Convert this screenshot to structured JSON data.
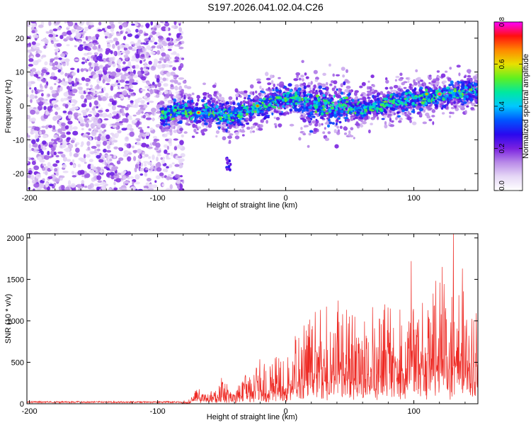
{
  "title": "S197.2026.041.02.04.C26",
  "colors": {
    "snr_line": "#ee2a24",
    "axis": "#000000",
    "background": "#ffffff",
    "colormap": [
      "#ffffff",
      "#e6d8f6",
      "#b98ae8",
      "#7a21e0",
      "#2a08ee",
      "#0055ff",
      "#00c8ff",
      "#00e8a0",
      "#60f020",
      "#e8e000",
      "#ff8800",
      "#ff1010",
      "#ff00ff"
    ]
  },
  "chart_data": [
    {
      "name": "spectrogram",
      "type": "heatmap",
      "title": "S197.2026.041.02.04.C26",
      "xlabel": "Height of straight line (km)",
      "ylabel": "Frequency (Hz)",
      "xlim": [
        -202,
        150
      ],
      "ylim": [
        -25,
        25
      ],
      "x_ticks": [
        -200,
        -100,
        0,
        100
      ],
      "x_tick_labels": [
        "-200",
        "-100",
        "0",
        "100"
      ],
      "y_ticks": [
        -20,
        -10,
        0,
        10,
        20
      ],
      "y_tick_labels": [
        "-20",
        "-10",
        "0",
        "10",
        "20"
      ],
      "colorbar": {
        "label": "Normalized spectral amplitude",
        "range": [
          0.0,
          0.8
        ],
        "ticks": [
          0.0,
          0.2,
          0.4,
          0.6,
          0.8
        ],
        "tick_labels": [
          "0.0",
          "0.2",
          "0.4",
          "0.6",
          "0.8"
        ]
      },
      "regions": [
        {
          "description": "broadband noise",
          "x_range": [
            -202,
            -80
          ],
          "freq_range": [
            -25,
            25
          ],
          "amplitude": [
            0.05,
            0.18
          ]
        },
        {
          "description": "signal ridge",
          "x_range": [
            -97,
            150
          ],
          "ridge_points": [
            [
              -97,
              -3
            ],
            [
              -80,
              -1
            ],
            [
              -70,
              -2
            ],
            [
              -55,
              -2
            ],
            [
              -45,
              -3
            ],
            [
              -35,
              -2
            ],
            [
              -20,
              0
            ],
            [
              -10,
              1
            ],
            [
              0,
              2
            ],
            [
              10,
              2
            ],
            [
              20,
              0
            ],
            [
              40,
              0
            ],
            [
              60,
              -1
            ],
            [
              80,
              1
            ],
            [
              100,
              2
            ],
            [
              120,
              3
            ],
            [
              140,
              4
            ],
            [
              150,
              4
            ]
          ],
          "amplitude": [
            0.15,
            0.8
          ]
        },
        {
          "description": "isolated patch",
          "x_range": [
            -47,
            -43
          ],
          "freq_range": [
            -19,
            -15
          ],
          "amplitude": [
            0.15,
            0.3
          ]
        }
      ],
      "peaks": [
        {
          "x": -68,
          "freq": -2,
          "value": 0.75
        },
        {
          "x": -22,
          "freq": 0,
          "value": 0.7
        },
        {
          "x": 120,
          "freq": 3.5,
          "value": 0.8
        },
        {
          "x": 110,
          "freq": 3.5,
          "value": 0.65
        }
      ]
    },
    {
      "name": "snr",
      "type": "line",
      "xlabel": "Height of straight line (km)",
      "ylabel": "SNR (10 * v/v)",
      "xlim": [
        -202,
        150
      ],
      "ylim": [
        0,
        2050
      ],
      "x_ticks": [
        -200,
        -100,
        0,
        100
      ],
      "x_tick_labels": [
        "-200",
        "-100",
        "0",
        "100"
      ],
      "y_ticks": [
        0,
        500,
        1000,
        1500,
        2000
      ],
      "y_tick_labels": [
        "0",
        "500",
        "1000",
        "1500",
        "2000"
      ],
      "envelope": [
        {
          "x": -202,
          "base": 10,
          "max": 30
        },
        {
          "x": -82,
          "base": 10,
          "max": 30
        },
        {
          "x": -75,
          "base": 20,
          "max": 60
        },
        {
          "x": -70,
          "base": 60,
          "max": 200
        },
        {
          "x": -60,
          "base": 40,
          "max": 150
        },
        {
          "x": -50,
          "base": 80,
          "max": 320
        },
        {
          "x": -40,
          "base": 40,
          "max": 150
        },
        {
          "x": -30,
          "base": 100,
          "max": 420
        },
        {
          "x": -20,
          "base": 80,
          "max": 600
        },
        {
          "x": -10,
          "base": 120,
          "max": 560
        },
        {
          "x": 0,
          "base": 150,
          "max": 750
        },
        {
          "x": 10,
          "base": 200,
          "max": 900
        },
        {
          "x": 20,
          "base": 250,
          "max": 1150
        },
        {
          "x": 40,
          "base": 300,
          "max": 1250
        },
        {
          "x": 60,
          "base": 300,
          "max": 1200
        },
        {
          "x": 80,
          "base": 350,
          "max": 1300
        },
        {
          "x": 100,
          "base": 400,
          "max": 1400
        },
        {
          "x": 120,
          "base": 450,
          "max": 1500
        },
        {
          "x": 140,
          "base": 400,
          "max": 1400
        },
        {
          "x": 150,
          "base": 350,
          "max": 1200
        }
      ],
      "peaks": [
        {
          "x": 98,
          "y": 1720
        },
        {
          "x": 122,
          "y": 1650
        },
        {
          "x": 131,
          "y": 2050
        },
        {
          "x": 138,
          "y": 1630
        }
      ]
    }
  ]
}
